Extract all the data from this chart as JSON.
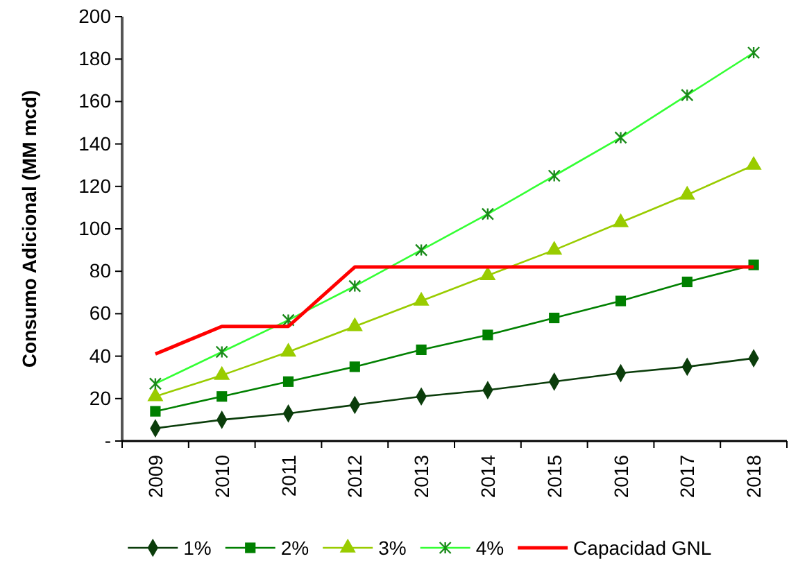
{
  "chart_data": {
    "type": "line",
    "ylabel": "Consumo Adicional (MM mcd)",
    "categories": [
      "2009",
      "2010",
      "2011",
      "2012",
      "2013",
      "2014",
      "2015",
      "2016",
      "2017",
      "2018"
    ],
    "series": [
      {
        "name": "1%",
        "color": "#0b3d0b",
        "marker": "diamond",
        "values": [
          6,
          10,
          13,
          17,
          21,
          24,
          28,
          32,
          35,
          39
        ]
      },
      {
        "name": "2%",
        "color": "#008000",
        "marker": "square",
        "values": [
          14,
          21,
          28,
          35,
          43,
          50,
          58,
          66,
          75,
          83
        ]
      },
      {
        "name": "3%",
        "color": "#99cc00",
        "marker": "triangle",
        "values": [
          21,
          31,
          42,
          54,
          66,
          78,
          90,
          103,
          116,
          130
        ]
      },
      {
        "name": "4%",
        "color": "#33ff33",
        "marker": "cross",
        "values": [
          27,
          42,
          57,
          73,
          90,
          107,
          125,
          143,
          163,
          183
        ]
      },
      {
        "name": "Capacidad GNL",
        "color": "#ff0000",
        "marker": "none",
        "values": [
          41,
          54,
          54,
          82,
          82,
          82,
          82,
          82,
          82,
          82
        ]
      }
    ],
    "ylim": [
      0,
      200
    ],
    "yticks": [
      {
        "value": 0,
        "label": "-"
      },
      20,
      40,
      60,
      80,
      100,
      120,
      140,
      160,
      180,
      200
    ],
    "grid": false,
    "legend": "bottom"
  }
}
